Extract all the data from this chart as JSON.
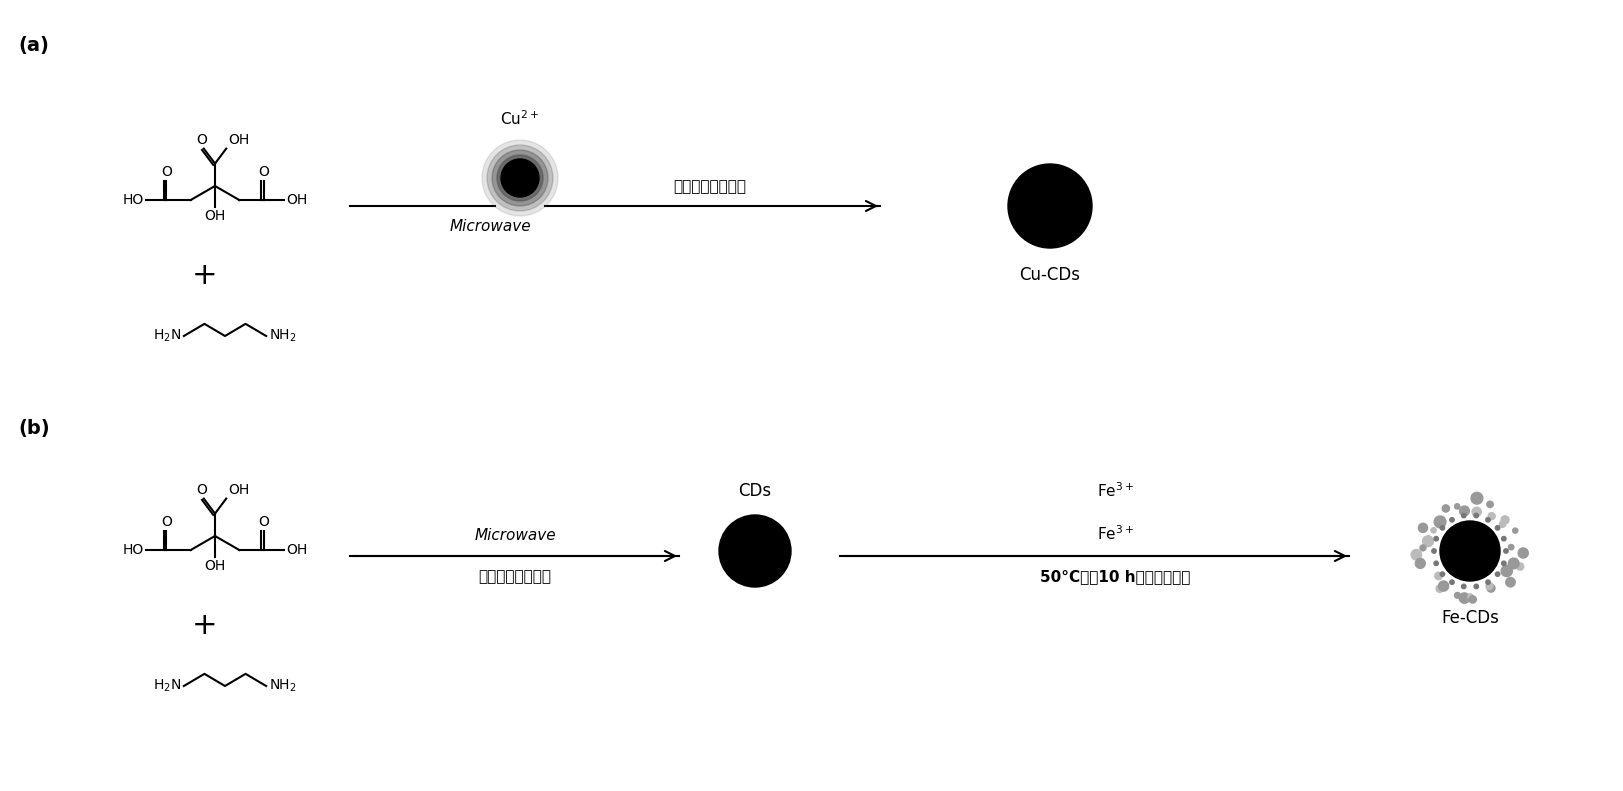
{
  "bg_color": "#ffffff",
  "panel_a_label": "(a)",
  "panel_b_label": "(b)",
  "panel_a_text_above": "过滤，透析，干燥",
  "panel_a_text_below": "Microwave",
  "panel_a_cu_label": "Cu$^{2+}$",
  "panel_a_product_label": "Cu-CDs",
  "panel_b_text_above": "Microwave",
  "panel_b_text_below": "过滤，透析，干燥",
  "panel_b_cds_label": "CDs",
  "panel_b_fe_label": "Fe$^{3+}$",
  "panel_b_arrow2_above": "Fe$^{3+}$",
  "panel_b_arrow2_below_bold": "50°C搞拌10 h，洗涤，干燥",
  "panel_b_product_label": "Fe-CDs",
  "plus_symbol": "+",
  "line_color": "#000000",
  "text_color": "#000000"
}
